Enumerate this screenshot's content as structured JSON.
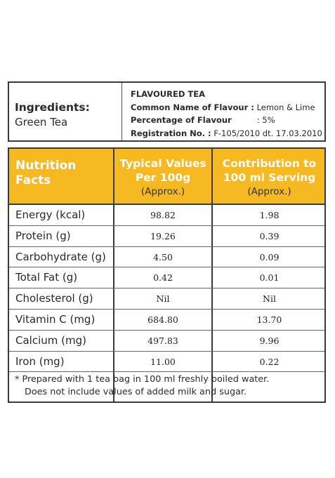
{
  "ingredients": {
    "title": "Ingredients:",
    "value": "Green Tea"
  },
  "flavour": {
    "heading": "FLAVOURED TEA",
    "common_name_label": "Common Name of Flavour :",
    "common_name_value": "Lemon & Lime",
    "percentage_label": "Percentage of Flavour",
    "percentage_value": ": 5%",
    "registration_label": "Registration No. :",
    "registration_value": "F-105/2010 dt. 17.03.2010"
  },
  "nutrition": {
    "header": {
      "col1_line1": "Nutrition",
      "col1_line2": "Facts",
      "col2_line1": "Typical Values",
      "col2_line2": "Per 100g",
      "col2_line3": "(Approx.)",
      "col3_line1": "Contribution to",
      "col3_line2": "100 ml Serving",
      "col3_line3": "(Approx.)"
    },
    "rows": [
      {
        "name": "Energy (kcal)",
        "per100g": "98.82",
        "per100ml": "1.98"
      },
      {
        "name": "Protein (g)",
        "per100g": "19.26",
        "per100ml": "0.39"
      },
      {
        "name": "Carbohydrate (g)",
        "per100g": "4.50",
        "per100ml": "0.09"
      },
      {
        "name": "Total Fat (g)",
        "per100g": "0.42",
        "per100ml": "0.01"
      },
      {
        "name": "Cholesterol (g)",
        "per100g": "Nil",
        "per100ml": "Nil"
      },
      {
        "name": "Vitamin C (mg)",
        "per100g": "684.80",
        "per100ml": "13.70"
      },
      {
        "name": "Calcium (mg)",
        "per100g": "497.83",
        "per100ml": "9.96"
      },
      {
        "name": "Iron (mg)",
        "per100g": "11.00",
        "per100ml": "0.22"
      }
    ],
    "note_line1": "* Prepared with 1 tea bag in 100 ml freshly boiled water.",
    "note_line2": "Does not include values of added milk and sugar."
  },
  "colors": {
    "header_bg": "#f6b922",
    "border": "#3a3a3a"
  }
}
